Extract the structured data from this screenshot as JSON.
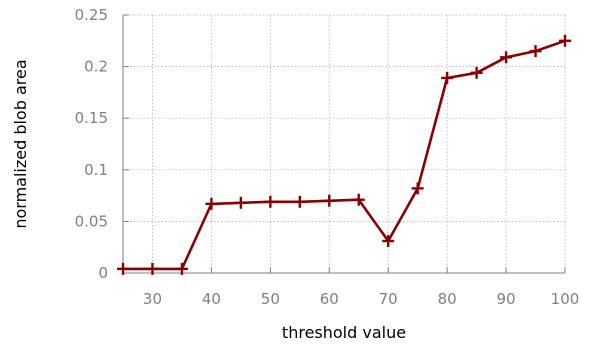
{
  "chart_data": {
    "type": "line",
    "title": "",
    "xlabel": "threshold value",
    "ylabel": "normalized blob area",
    "xlim": [
      25,
      100
    ],
    "ylim": [
      0,
      0.25
    ],
    "x_ticks": [
      30,
      40,
      50,
      60,
      70,
      80,
      90,
      100
    ],
    "y_ticks": [
      0,
      0.05,
      0.1,
      0.15,
      0.2,
      0.25
    ],
    "x_tick_labels": [
      "30",
      "40",
      "50",
      "60",
      "70",
      "80",
      "90",
      "100"
    ],
    "y_tick_labels": [
      "0",
      "0.05",
      "0.1",
      "0.15",
      "0.2",
      "0.25"
    ],
    "grid": true,
    "series": [
      {
        "color": "#8b0000",
        "marker": "plus",
        "x": [
          25,
          30,
          35,
          40,
          45,
          50,
          55,
          60,
          65,
          70,
          75,
          80,
          85,
          90,
          95,
          100
        ],
        "y": [
          0.004,
          0.004,
          0.004,
          0.067,
          0.068,
          0.069,
          0.069,
          0.07,
          0.071,
          0.031,
          0.082,
          0.189,
          0.194,
          0.209,
          0.215,
          0.225
        ]
      }
    ]
  }
}
